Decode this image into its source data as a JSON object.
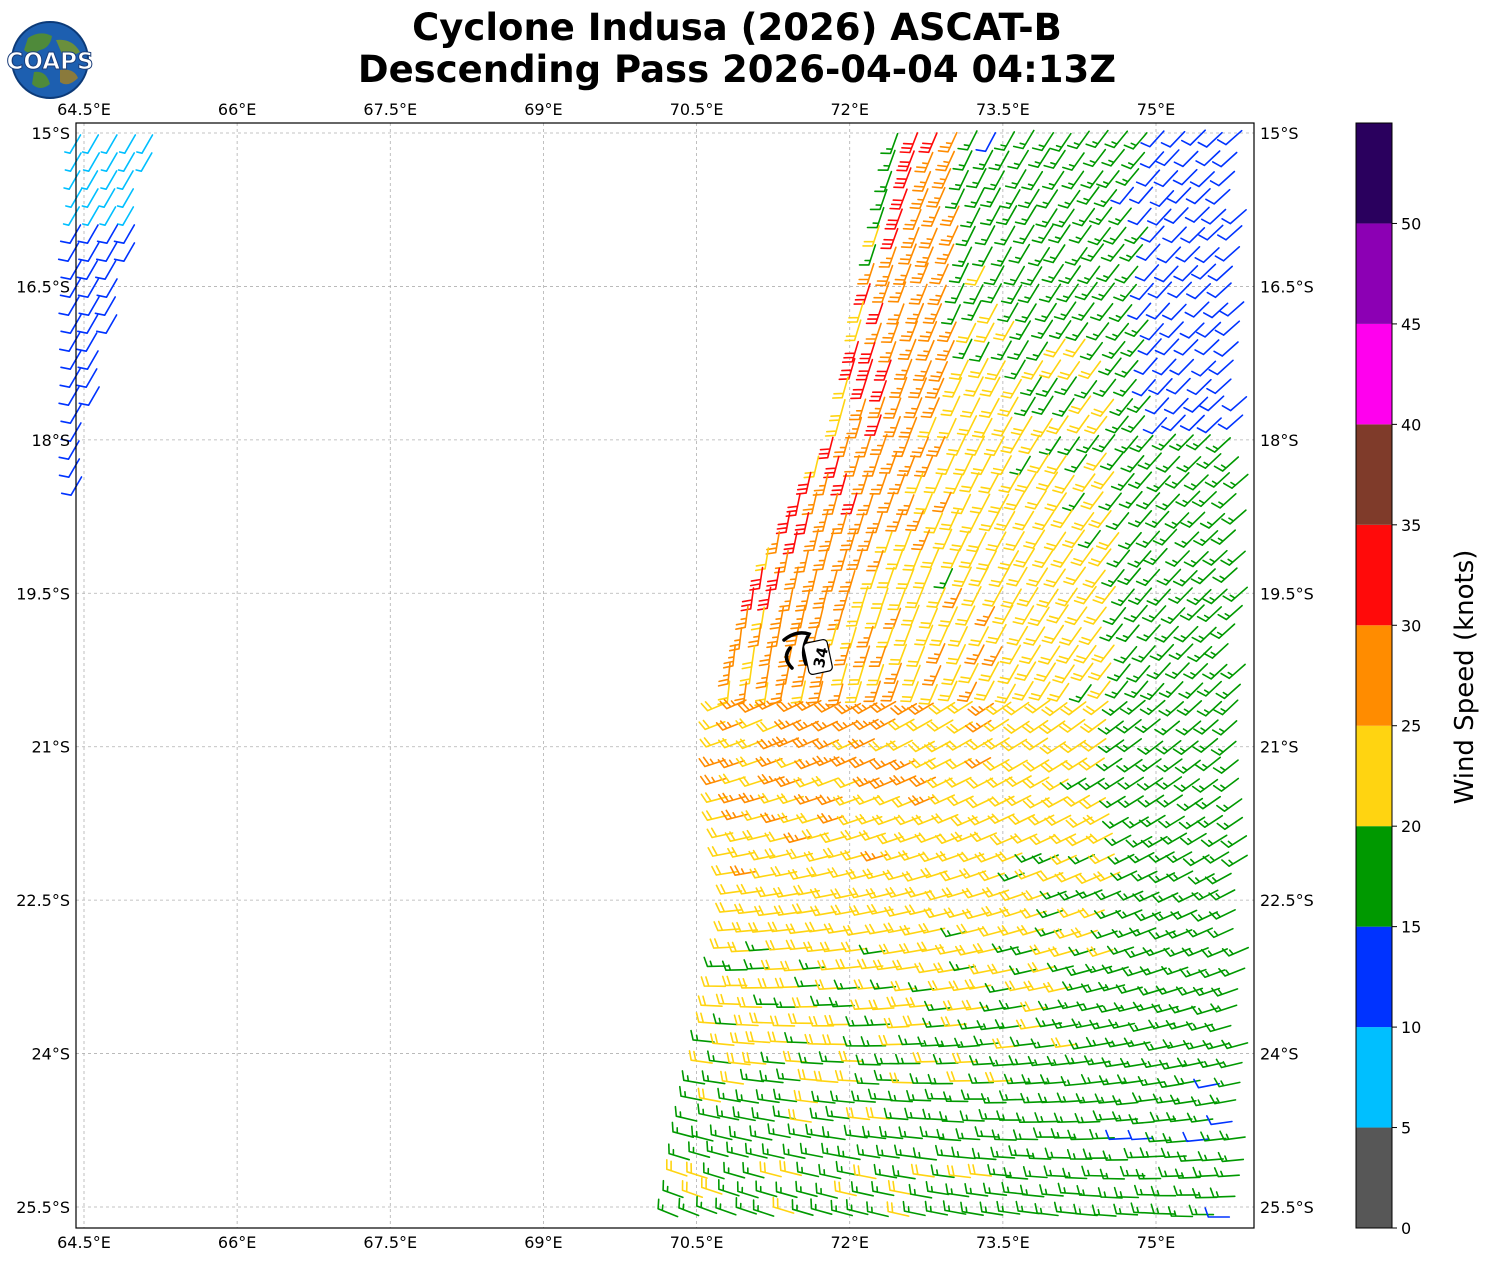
{
  "title_line1": "Cyclone Indusa (2026) ASCAT-B",
  "title_line2": "Descending Pass 2026-04-04 04:13Z",
  "logo": {
    "text": "COAPS",
    "icon": "globe-icon"
  },
  "chart_data": {
    "type": "wind-barb-map",
    "x_ticks": [
      "64.5°E",
      "66°E",
      "67.5°E",
      "69°E",
      "70.5°E",
      "72°E",
      "73.5°E",
      "75°E"
    ],
    "x_values": [
      64.5,
      66,
      67.5,
      69,
      70.5,
      72,
      73.5,
      75
    ],
    "y_ticks": [
      "15°S",
      "16.5°S",
      "18°S",
      "19.5°S",
      "21°S",
      "22.5°S",
      "24°S",
      "25.5°S"
    ],
    "y_values": [
      -15,
      -16.5,
      -18,
      -19.5,
      -21,
      -22.5,
      -24,
      -25.5
    ],
    "lon_range": [
      64.4,
      75.9
    ],
    "lat_range": [
      -15.85,
      -25.7
    ],
    "grid": true,
    "center_marker": {
      "label": "34",
      "lon": 71.6,
      "lat": -20.2
    },
    "colorbar": {
      "label": "Wind Speed (knots)",
      "ticks": [
        "0",
        "5",
        "10",
        "15",
        "20",
        "25",
        "30",
        "35",
        "40",
        "45",
        "50"
      ],
      "bins": [
        {
          "from": 0,
          "to": 5,
          "color": "#575757"
        },
        {
          "from": 5,
          "to": 10,
          "color": "#00bfff"
        },
        {
          "from": 10,
          "to": 15,
          "color": "#0033ff"
        },
        {
          "from": 15,
          "to": 20,
          "color": "#009900"
        },
        {
          "from": 20,
          "to": 25,
          "color": "#ffd411"
        },
        {
          "from": 25,
          "to": 30,
          "color": "#ff8c00"
        },
        {
          "from": 30,
          "to": 35,
          "color": "#ff0a0a"
        },
        {
          "from": 35,
          "to": 40,
          "color": "#7f3b2a"
        },
        {
          "from": 40,
          "to": 45,
          "color": "#ff00ee"
        },
        {
          "from": 45,
          "to": 50,
          "color": "#8c00b4"
        },
        {
          "from": 50,
          "to": 55,
          "color": "#2a005e"
        }
      ]
    }
  }
}
